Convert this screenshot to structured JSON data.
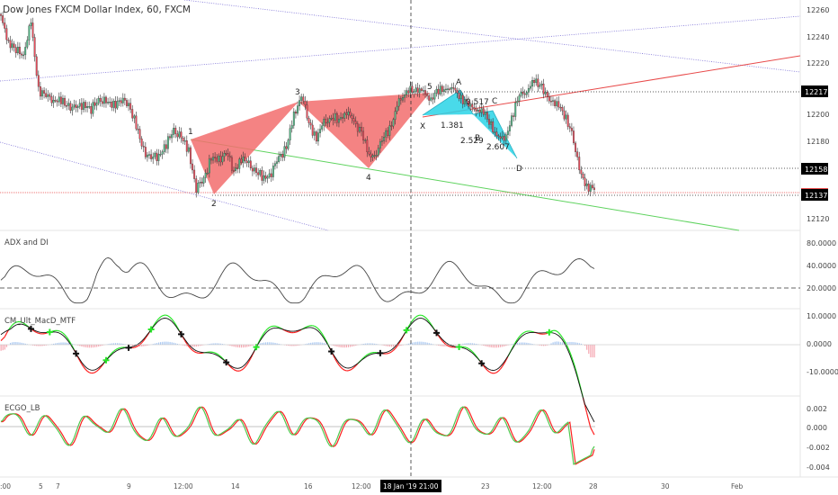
{
  "title": "Dow Jones FXCM Dollar Index, 60, FXCM",
  "colors": {
    "bull": "#53b987",
    "bear": "#eb4d5c",
    "pattern_red": "#f26d6d",
    "pattern_cyan": "#29d3e6",
    "grid_blue": "#7b6fd6",
    "green_line": "#5fd35f",
    "red_line": "#e84a4a",
    "macd_green": "#27e627",
    "macd_red": "#ff1f1f",
    "hist_blue": "#a9c8f2",
    "hist_red": "#f5a6b0"
  },
  "price_labels": {
    "ticks": [
      "12260",
      "12240",
      "12220",
      "12200",
      "12180",
      "12120"
    ],
    "markers": [
      {
        "text": "12217",
        "style": "black"
      },
      {
        "text": "12158",
        "style": "black"
      },
      {
        "text": "12137",
        "style": "black"
      }
    ]
  },
  "pattern_labels": {
    "points": [
      "1",
      "2",
      "3",
      "4",
      "5",
      "X",
      "A",
      "B",
      "C",
      "D"
    ],
    "ratios": [
      "0.517",
      "1.381",
      "2.529",
      "2.607"
    ]
  },
  "panels": {
    "adx": {
      "title": "ADX and DI",
      "ticks": [
        "80.0000",
        "40.0000",
        "20.0000"
      ]
    },
    "macd": {
      "title": "CM_Ult_MacD_MTF",
      "ticks": [
        "10.0000",
        "0.0000",
        "-10.0000"
      ]
    },
    "ecgo": {
      "title": "ECGO_LB",
      "ticks": [
        "0.002",
        "0.000",
        "-0.002",
        "-0.004"
      ]
    }
  },
  "time_axis": {
    "labels": [
      "7",
      "9",
      "12:00",
      "14",
      "16",
      "12:00",
      "23",
      "12:00",
      "28",
      "30",
      "Feb"
    ],
    "crosshair_label": "18 Jan '19   21:00",
    "edge_left": ":00",
    "edge_mid": "5"
  },
  "chart_data": {
    "type": "candlestick",
    "title": "Dow Jones FXCM Dollar Index, 60, FXCM",
    "y_range": [
      12110,
      12275
    ],
    "key_levels": [
      12217,
      12158,
      12137
    ],
    "close_path": [
      12262,
      12245,
      12238,
      12236,
      12258,
      12210,
      12205,
      12203,
      12201,
      12198,
      12196,
      12200,
      12195,
      12203,
      12200,
      12199,
      12202,
      12200,
      12183,
      12165,
      12160,
      12162,
      12170,
      12180,
      12175,
      12165,
      12138,
      12145,
      12160,
      12158,
      12165,
      12150,
      12160,
      12155,
      12150,
      12145,
      12150,
      12160,
      12168,
      12190,
      12207,
      12185,
      12175,
      12185,
      12190,
      12187,
      12195,
      12185,
      12180,
      12160,
      12165,
      12175,
      12185,
      12200,
      12210,
      12208,
      12212,
      12200,
      12210,
      12208,
      12214,
      12203,
      12202,
      12193,
      12197,
      12185,
      12178,
      12171,
      12190,
      12205,
      12210,
      12215,
      12213,
      12200,
      12202,
      12190,
      12180,
      12150,
      12140,
      12137
    ],
    "harmonic_pattern": {
      "points": [
        "1",
        "2",
        "3",
        "4",
        "5",
        "X",
        "A",
        "B",
        "C",
        "D"
      ],
      "ratios": [
        0.517,
        1.381,
        2.529,
        2.607
      ]
    }
  }
}
